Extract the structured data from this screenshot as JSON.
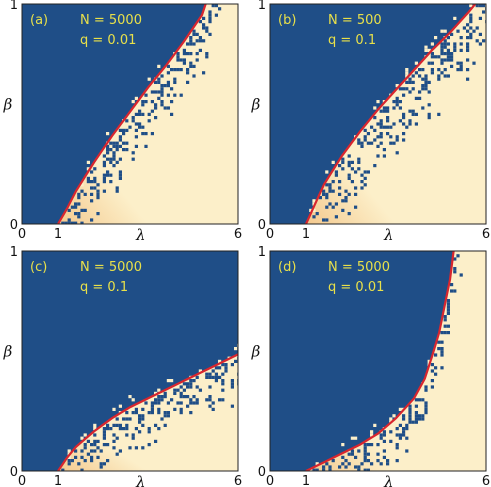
{
  "figure": {
    "colors": {
      "ordered_region": "#1f4e87",
      "disordered_region": "#fcefc9",
      "dense_region": "#f4c98e",
      "boundary_curve": "#d8262e",
      "annotation_text": "#e8e04a"
    }
  },
  "chart_data": [
    {
      "type": "heatmap",
      "panel_label": "(a)",
      "annotations": [
        "N = 5000",
        "q = 0.01"
      ],
      "xlabel": "λ",
      "ylabel": "β",
      "xlim": [
        0,
        6
      ],
      "ylim": [
        0,
        1
      ],
      "xticks": [
        "0",
        "1",
        "6"
      ],
      "yticks": [
        "0",
        "1"
      ],
      "boundary": {
        "x": [
          1.0,
          1.25,
          1.5,
          2.0,
          2.5,
          3.0,
          3.5,
          4.0,
          4.5,
          5.0,
          5.1
        ],
        "y": [
          0.0,
          0.07,
          0.15,
          0.28,
          0.4,
          0.51,
          0.62,
          0.72,
          0.83,
          0.95,
          1.0
        ]
      },
      "scatter_spread": 1.6
    },
    {
      "type": "heatmap",
      "panel_label": "(b)",
      "annotations": [
        "N = 500",
        "q = 0.1"
      ],
      "xlabel": "λ",
      "ylabel": "β",
      "xlim": [
        0,
        6
      ],
      "ylim": [
        0,
        1
      ],
      "xticks": [
        "0",
        "1",
        "6"
      ],
      "yticks": [
        "0",
        "1"
      ],
      "boundary": {
        "x": [
          1.0,
          1.25,
          1.5,
          2.0,
          2.5,
          3.0,
          3.5,
          4.0,
          4.5,
          5.0,
          5.5,
          5.7
        ],
        "y": [
          0.0,
          0.09,
          0.18,
          0.31,
          0.42,
          0.52,
          0.61,
          0.7,
          0.79,
          0.87,
          0.96,
          1.0
        ]
      },
      "scatter_spread": 1.8
    },
    {
      "type": "heatmap",
      "panel_label": "(c)",
      "annotations": [
        "N = 5000",
        "q = 0.1"
      ],
      "xlabel": "λ",
      "ylabel": "β",
      "xlim": [
        0,
        6
      ],
      "ylim": [
        0,
        1
      ],
      "xticks": [
        "0",
        "1",
        "6"
      ],
      "yticks": [
        "0",
        "1"
      ],
      "boundary": {
        "x": [
          1.0,
          1.25,
          1.5,
          2.0,
          2.5,
          3.0,
          3.5,
          4.0,
          4.5,
          5.0,
          5.5,
          6.0
        ],
        "y": [
          0.0,
          0.06,
          0.11,
          0.18,
          0.24,
          0.29,
          0.33,
          0.37,
          0.41,
          0.45,
          0.49,
          0.53
        ]
      },
      "scatter_spread": 1.3
    },
    {
      "type": "heatmap",
      "panel_label": "(d)",
      "annotations": [
        "N = 5000",
        "q = 0.01"
      ],
      "xlabel": "λ",
      "ylabel": "β",
      "xlim": [
        0,
        6
      ],
      "ylim": [
        0,
        1
      ],
      "xticks": [
        "0",
        "1",
        "6"
      ],
      "yticks": [
        "0",
        "1"
      ],
      "boundary": {
        "x": [
          1.0,
          1.5,
          2.0,
          2.5,
          3.0,
          3.5,
          4.0,
          4.3,
          4.5,
          4.7,
          4.85,
          5.0,
          5.1
        ],
        "y": [
          0.0,
          0.04,
          0.08,
          0.12,
          0.17,
          0.24,
          0.33,
          0.42,
          0.52,
          0.63,
          0.75,
          0.87,
          1.0
        ]
      },
      "scatter_spread": 1.2
    }
  ]
}
